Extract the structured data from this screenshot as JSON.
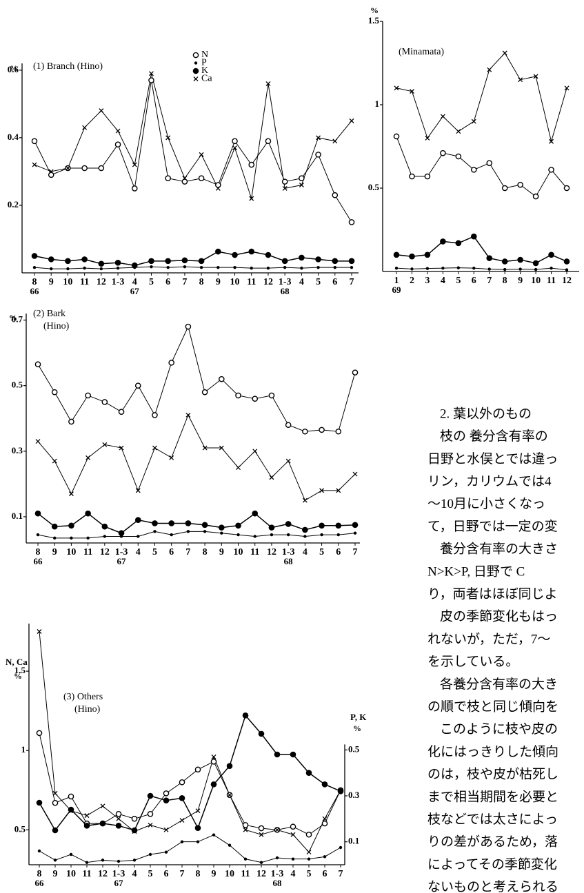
{
  "chart_data": [
    {
      "type": "line",
      "title": "(1)  Branch (Hino)",
      "y_unit": "%",
      "legend": true,
      "categories": [
        "8",
        "9",
        "10",
        "11",
        "12",
        "1-3",
        "4",
        "5",
        "6",
        "7",
        "8",
        "9",
        "10",
        "11",
        "12",
        "1-3",
        "4",
        "5",
        "6",
        "7"
      ],
      "year_labels": [
        "66",
        null,
        null,
        null,
        null,
        null,
        "67",
        null,
        null,
        null,
        null,
        null,
        null,
        null,
        null,
        "68",
        null,
        null,
        null,
        null
      ],
      "ylim": [
        0,
        0.62
      ],
      "yticks": [
        0.2,
        0.4,
        0.6
      ],
      "series": [
        {
          "name": "N",
          "marker": "open-circle",
          "color": "#000000",
          "values": [
            0.39,
            0.29,
            0.31,
            0.31,
            0.31,
            0.38,
            0.25,
            0.57,
            0.28,
            0.27,
            0.28,
            0.26,
            0.39,
            0.32,
            0.39,
            0.27,
            0.28,
            0.35,
            0.23,
            0.15
          ]
        },
        {
          "name": "P",
          "marker": "small-dot",
          "color": "#000000",
          "values": [
            0.016,
            0.012,
            0.012,
            0.014,
            0.012,
            0.014,
            0.016,
            0.018,
            0.016,
            0.018,
            0.016,
            0.016,
            0.016,
            0.014,
            0.014,
            0.016,
            0.014,
            0.016,
            0.016,
            0.016
          ]
        },
        {
          "name": "K",
          "marker": "dot",
          "color": "#000000",
          "values": [
            0.05,
            0.04,
            0.035,
            0.04,
            0.027,
            0.03,
            0.022,
            0.035,
            0.035,
            0.037,
            0.035,
            0.063,
            0.053,
            0.063,
            0.053,
            0.035,
            0.045,
            0.04,
            0.035,
            0.035
          ]
        },
        {
          "name": "Ca",
          "marker": "cross",
          "color": "#000000",
          "values": [
            0.32,
            0.3,
            0.31,
            0.43,
            0.48,
            0.42,
            0.32,
            0.59,
            0.4,
            0.28,
            0.35,
            0.25,
            0.37,
            0.22,
            0.56,
            0.25,
            0.26,
            0.4,
            0.39,
            0.45
          ]
        }
      ]
    },
    {
      "type": "line",
      "title": "(Minamata)",
      "y_unit": "%",
      "legend": false,
      "categories": [
        "1",
        "2",
        "3",
        "4",
        "5",
        "6",
        "7",
        "8",
        "9",
        "10",
        "11",
        "12"
      ],
      "year_labels": [
        "69",
        null,
        null,
        null,
        null,
        null,
        null,
        null,
        null,
        null,
        null,
        null
      ],
      "ylim": [
        0,
        1.5
      ],
      "yticks": [
        0.5,
        1.0,
        1.5
      ],
      "series": [
        {
          "name": "N",
          "marker": "open-circle",
          "color": "#000000",
          "values": [
            0.81,
            0.57,
            0.57,
            0.71,
            0.69,
            0.61,
            0.65,
            0.5,
            0.52,
            0.45,
            0.61,
            0.5
          ]
        },
        {
          "name": "P",
          "marker": "small-dot",
          "color": "#000000",
          "values": [
            0.02,
            0.015,
            0.018,
            0.02,
            0.022,
            0.02,
            0.014,
            0.012,
            0.014,
            0.012,
            0.02,
            0.01
          ]
        },
        {
          "name": "K",
          "marker": "dot",
          "color": "#000000",
          "values": [
            0.1,
            0.09,
            0.1,
            0.18,
            0.17,
            0.21,
            0.08,
            0.06,
            0.07,
            0.05,
            0.1,
            0.06
          ]
        },
        {
          "name": "Ca",
          "marker": "cross",
          "color": "#000000",
          "values": [
            1.1,
            1.08,
            0.8,
            0.93,
            0.84,
            0.9,
            1.21,
            1.31,
            1.15,
            1.17,
            0.78,
            1.1
          ]
        }
      ]
    },
    {
      "type": "line",
      "title": "(2)  Bark",
      "subtitle": "(Hino)",
      "y_unit": "%",
      "legend": false,
      "categories": [
        "8",
        "9",
        "10",
        "11",
        "12",
        "1-3",
        "4",
        "5",
        "6",
        "7",
        "8",
        "9",
        "10",
        "11",
        "12",
        "1-3",
        "4",
        "5",
        "6",
        "7"
      ],
      "year_labels": [
        "66",
        null,
        null,
        null,
        null,
        "67",
        null,
        null,
        null,
        null,
        null,
        null,
        null,
        null,
        null,
        "68",
        null,
        null,
        null,
        null
      ],
      "ylim": [
        0.02,
        0.72
      ],
      "yticks": [
        0.1,
        0.3,
        0.5,
        0.7
      ],
      "series": [
        {
          "name": "N",
          "marker": "open-circle",
          "color": "#000000",
          "values": [
            0.565,
            0.48,
            0.39,
            0.47,
            0.45,
            0.42,
            0.5,
            0.41,
            0.57,
            0.68,
            0.48,
            0.52,
            0.47,
            0.46,
            0.47,
            0.38,
            0.36,
            0.365,
            0.36,
            0.54
          ]
        },
        {
          "name": "P",
          "marker": "small-dot",
          "color": "#000000",
          "values": [
            0.045,
            0.035,
            0.035,
            0.035,
            0.04,
            0.04,
            0.04,
            0.055,
            0.045,
            0.055,
            0.055,
            0.05,
            0.045,
            0.04,
            0.045,
            0.045,
            0.04,
            0.045,
            0.045,
            0.05
          ]
        },
        {
          "name": "K",
          "marker": "dot",
          "color": "#000000",
          "values": [
            0.11,
            0.07,
            0.073,
            0.11,
            0.07,
            0.05,
            0.09,
            0.08,
            0.08,
            0.08,
            0.075,
            0.067,
            0.073,
            0.11,
            0.067,
            0.078,
            0.06,
            0.073,
            0.073,
            0.075
          ]
        },
        {
          "name": "Ca",
          "marker": "cross",
          "color": "#000000",
          "values": [
            0.33,
            0.27,
            0.17,
            0.28,
            0.32,
            0.31,
            0.18,
            0.31,
            0.28,
            0.41,
            0.31,
            0.31,
            0.25,
            0.3,
            0.22,
            0.27,
            0.15,
            0.18,
            0.18,
            0.23
          ]
        }
      ]
    },
    {
      "type": "line",
      "title": "(3)  Others",
      "subtitle": "(Hino)",
      "y_label": "N, Ca",
      "y_unit": "%",
      "y2_label": "P, K",
      "y2_unit": "%",
      "legend": false,
      "categories": [
        "8",
        "9",
        "10",
        "11",
        "12",
        "1-3",
        "4",
        "5",
        "6",
        "7",
        "8",
        "9",
        "10",
        "11",
        "12",
        "1-3",
        "4",
        "5",
        "6",
        "7"
      ],
      "year_labels": [
        "66",
        null,
        null,
        null,
        null,
        "67",
        null,
        null,
        null,
        null,
        null,
        null,
        null,
        null,
        null,
        "68",
        null,
        null,
        null,
        null
      ],
      "ylim": [
        0.28,
        1.8
      ],
      "yticks": [
        0.5,
        1.0,
        1.5
      ],
      "y2lim": [
        0,
        1.05
      ],
      "y2ticks": [
        0.1,
        0.3,
        0.5
      ],
      "series": [
        {
          "name": "N",
          "marker": "open-circle",
          "color": "#000000",
          "values": [
            1.11,
            0.67,
            0.71,
            0.54,
            0.54,
            0.6,
            0.57,
            0.6,
            0.73,
            0.8,
            0.88,
            0.93,
            0.72,
            0.53,
            0.51,
            0.5,
            0.52,
            0.47,
            0.54,
            0.75
          ]
        },
        {
          "name": "P",
          "marker": "small-dot",
          "color": "#000000",
          "axis": "y2",
          "values": [
            0.06,
            0.02,
            0.045,
            0.01,
            0.02,
            0.015,
            0.02,
            0.045,
            0.055,
            0.1,
            0.1,
            0.13,
            0.085,
            0.025,
            0.01,
            0.03,
            0.025,
            0.025,
            0.035,
            0.075
          ]
        },
        {
          "name": "K",
          "marker": "dot",
          "color": "#000000",
          "axis": "y2",
          "values": [
            0.27,
            0.15,
            0.24,
            0.17,
            0.18,
            0.17,
            0.15,
            0.3,
            0.28,
            0.29,
            0.16,
            0.35,
            0.43,
            0.65,
            0.57,
            0.48,
            0.48,
            0.4,
            0.35,
            0.32
          ]
        },
        {
          "name": "Ca",
          "marker": "cross",
          "color": "#000000",
          "values": [
            1.75,
            0.73,
            0.62,
            0.59,
            0.65,
            0.57,
            0.49,
            0.53,
            0.5,
            0.56,
            0.62,
            0.96,
            0.72,
            0.5,
            0.47,
            0.5,
            0.47,
            0.36,
            0.57,
            0.75
          ]
        }
      ]
    }
  ],
  "text": {
    "heading": "2. 葉以外のもの",
    "paragraphs": [
      [
        "枝の 養分含有率の",
        "日野と水俣とでは違っ",
        "リン，カリウムでは4",
        "〜10月に小さくなっ",
        "て，日野では一定の変"
      ],
      [
        "養分含有率の大きさ",
        "N>K>P, 日野で C",
        "り，両者はほぼ同じよ"
      ],
      [
        "皮の季節変化もはっ",
        "れないが，ただ，7〜",
        "を示している。"
      ],
      [
        "各養分含有率の大き",
        "の順で枝と同じ傾向を"
      ],
      [
        "このように枝や皮の",
        "化にはっきりした傾向",
        "のは，枝や皮が枯死し",
        "まで相当期間を必要と",
        "枝などでは太さによっ",
        "りの差があるため，落",
        "によってその季節変化",
        "ないものと考えられる"
      ]
    ]
  }
}
